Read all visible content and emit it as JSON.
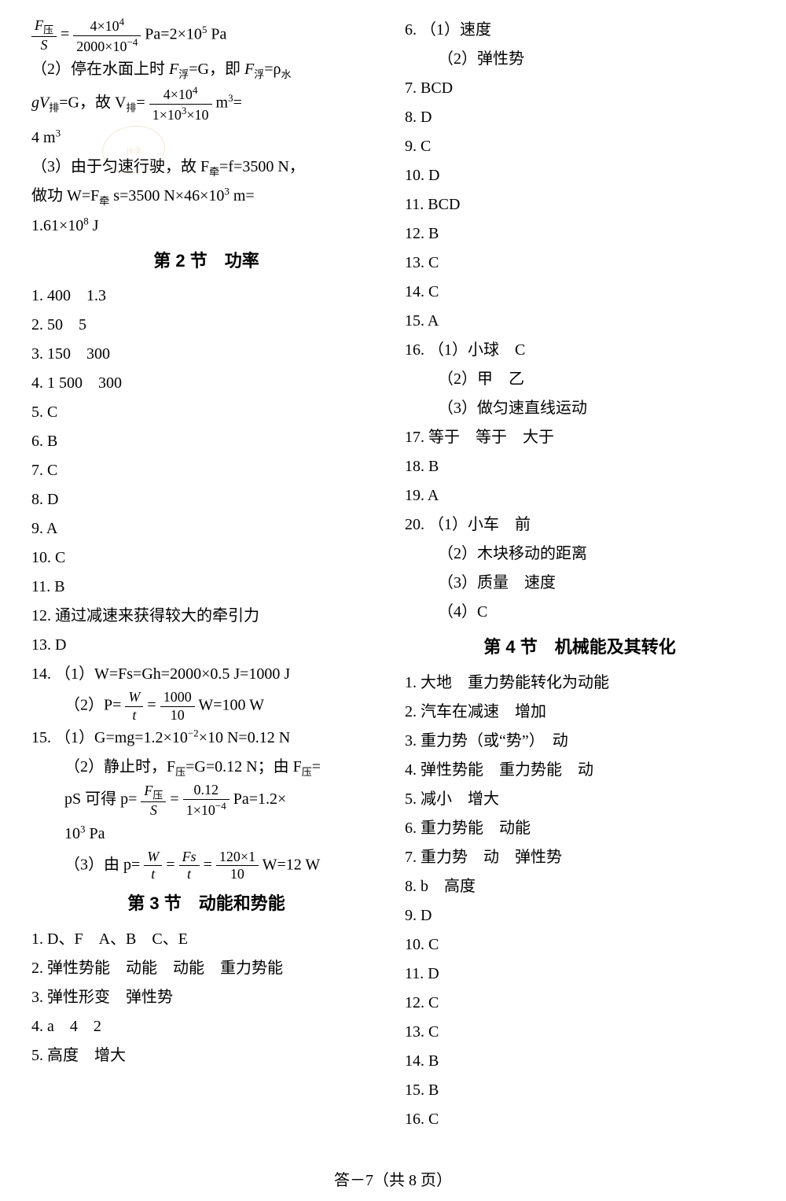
{
  "colors": {
    "text": "#000000",
    "background": "#ffffff",
    "watermark": "#c9a25a"
  },
  "typography": {
    "body_font": "SimSun, STSong, serif",
    "heading_font": "SimHei, sans-serif",
    "body_size_pt": 15,
    "heading_size_pt": 16
  },
  "footer": "答－7（共 8 页）",
  "watermark_text": "作业",
  "left": {
    "eq1_lhs_num": "F",
    "eq1_lhs_num_sub": "压",
    "eq1_lhs_den": "S",
    "eq1_rhs_num": "4×10",
    "eq1_rhs_num_sup": "4",
    "eq1_rhs_den": "2000×10",
    "eq1_rhs_den_sup": "−4",
    "eq1_unit": " Pa=2×10",
    "eq1_unit_sup": "5",
    "eq1_tail": " Pa",
    "p2_a": "（2）停在水面上时 ",
    "p2_b": "F",
    "p2_b_sub": "浮",
    "p2_c": "=G，即 ",
    "p2_d": "F",
    "p2_d_sub": "浮",
    "p2_e": "=ρ",
    "p2_e_sub": "水",
    "p3_a": "gV",
    "p3_a_sub": "排",
    "p3_b": "=G，故 V",
    "p3_b_sub": "排",
    "p3_c": "=",
    "p3_frac_num": "4×10",
    "p3_frac_num_sup": "4",
    "p3_frac_den": "1×10",
    "p3_frac_den_sup": "3",
    "p3_frac_den_tail": "×10",
    "p3_unit": " m",
    "p3_unit_sup": "3",
    "p3_tail": "=",
    "p4": "4 m",
    "p4_sup": "3",
    "p5_a": "（3）由于匀速行驶，故 F",
    "p5_a_sub": "牵",
    "p5_b": "=f=3500 N，",
    "p6_a": "做功 W=F",
    "p6_a_sub": "牵",
    "p6_b": " s=3500 N×46×10",
    "p6_b_sup": "3",
    "p6_c": " m=",
    "p7": "1.61×10",
    "p7_sup": "8",
    "p7_tail": " J",
    "section2": "第 2 节　功率",
    "s2_1": "1. 400　1.3",
    "s2_2": "2. 50　5",
    "s2_3": "3. 150　300",
    "s2_4": "4. 1 500　300",
    "s2_5": "5. C",
    "s2_6": "6. B",
    "s2_7": "7. C",
    "s2_8": "8. D",
    "s2_9": "9. A",
    "s2_10": "10. C",
    "s2_11": "11. B",
    "s2_12": "12. 通过减速来获得较大的牵引力",
    "s2_13": "13. D",
    "s2_14": "14. （1）W=Fs=Gh=2000×0.5 J=1000 J",
    "s2_14b_a": "（2）P=",
    "s2_14b_num": "W",
    "s2_14b_den": "t",
    "s2_14b_eq": "=",
    "s2_14b_num2": "1000",
    "s2_14b_den2": "10",
    "s2_14b_tail": " W=100 W",
    "s2_15a": "15. （1）G=mg=1.2×10",
    "s2_15a_sup": "−2",
    "s2_15a_tail": "×10 N=0.12 N",
    "s2_15b_a": "（2）静止时，F",
    "s2_15b_a_sub": "压",
    "s2_15b_b": "=G=0.12 N；由 F",
    "s2_15b_b_sub": "压",
    "s2_15b_c": "=",
    "s2_15c_a": "pS 可得 p=",
    "s2_15c_num": "F",
    "s2_15c_num_sub": "压",
    "s2_15c_den": "S",
    "s2_15c_eq": "=",
    "s2_15c_num2": "0.12",
    "s2_15c_den2": "1×10",
    "s2_15c_den2_sup": "−4",
    "s2_15c_tail": "Pa=1.2×",
    "s2_15d": "10",
    "s2_15d_sup": "3",
    "s2_15d_tail": " Pa",
    "s2_15e_a": "（3）由 p=",
    "s2_15e_num": "W",
    "s2_15e_den": "t",
    "s2_15e_eq": "=",
    "s2_15e_num2": "Fs",
    "s2_15e_den2": "t",
    "s2_15e_eq2": "=",
    "s2_15e_num3": "120×1",
    "s2_15e_den3": "10",
    "s2_15e_tail": " W=12 W",
    "section3": "第 3 节　动能和势能",
    "s3_1": "1. D、F　A、B　C、E",
    "s3_2": "2. 弹性势能　动能　动能　重力势能",
    "s3_3": "3. 弹性形变　弹性势",
    "s3_4": "4. a　4　2",
    "s3_5": "5. 高度　增大"
  },
  "right": {
    "s3_6a": "6. （1）速度",
    "s3_6b": "（2）弹性势",
    "s3_7": "7. BCD",
    "s3_8": "8. D",
    "s3_9": "9. C",
    "s3_10": "10. D",
    "s3_11": "11. BCD",
    "s3_12": "12. B",
    "s3_13": "13. C",
    "s3_14": "14. C",
    "s3_15": "15. A",
    "s3_16a": "16. （1）小球　C",
    "s3_16b": "（2）甲　乙",
    "s3_16c": "（3）做匀速直线运动",
    "s3_17": "17. 等于　等于　大于",
    "s3_18": "18. B",
    "s3_19": "19. A",
    "s3_20a": "20. （1）小车　前",
    "s3_20b": "（2）木块移动的距离",
    "s3_20c": "（3）质量　速度",
    "s3_20d": "（4）C",
    "section4": "第 4 节　机械能及其转化",
    "s4_1": "1. 大地　重力势能转化为动能",
    "s4_2": "2. 汽车在减速　增加",
    "s4_3": "3. 重力势（或“势”）　动",
    "s4_4": "4. 弹性势能　重力势能　动",
    "s4_5": "5. 减小　增大",
    "s4_6": "6. 重力势能　动能",
    "s4_7": "7. 重力势　动　弹性势",
    "s4_8": "8. b　高度",
    "s4_9": "9. D",
    "s4_10": "10. C",
    "s4_11": "11. D",
    "s4_12": "12. C",
    "s4_13": "13. C",
    "s4_14": "14. B",
    "s4_15": "15. B",
    "s4_16": "16. C"
  }
}
